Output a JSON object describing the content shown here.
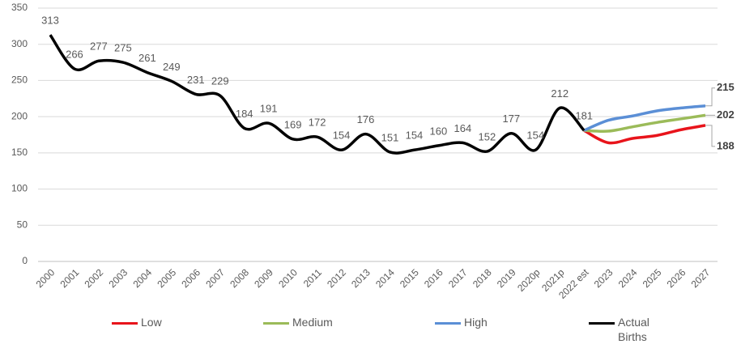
{
  "chart_data": {
    "type": "line",
    "categories": [
      "2000",
      "2001",
      "2002",
      "2003",
      "2004",
      "2005",
      "2006",
      "2007",
      "2008",
      "2009",
      "2010",
      "2011",
      "2012",
      "2013",
      "2014",
      "2015",
      "2016",
      "2017",
      "2018",
      "2019",
      "2020p",
      "2021p",
      "2022 est",
      "2023",
      "2024",
      "2025",
      "2026",
      "2027"
    ],
    "series": [
      {
        "name": "Low",
        "color": "#e8141b",
        "values": [
          null,
          null,
          null,
          null,
          null,
          null,
          null,
          null,
          null,
          null,
          null,
          null,
          null,
          null,
          null,
          null,
          null,
          null,
          null,
          null,
          null,
          null,
          181,
          164,
          170,
          174,
          182,
          188
        ]
      },
      {
        "name": "Medium",
        "color": "#9bbb59",
        "values": [
          null,
          null,
          null,
          null,
          null,
          null,
          null,
          null,
          null,
          null,
          null,
          null,
          null,
          null,
          null,
          null,
          null,
          null,
          null,
          null,
          null,
          null,
          181,
          180,
          186,
          192,
          197,
          202
        ]
      },
      {
        "name": "High",
        "color": "#5b8fd6",
        "values": [
          null,
          null,
          null,
          null,
          null,
          null,
          null,
          null,
          null,
          null,
          null,
          null,
          null,
          null,
          null,
          null,
          null,
          null,
          null,
          null,
          null,
          null,
          181,
          195,
          201,
          208,
          212,
          215
        ]
      },
      {
        "name": "Actual Births",
        "color": "#000000",
        "values": [
          313,
          266,
          277,
          275,
          261,
          249,
          231,
          229,
          184,
          191,
          169,
          172,
          154,
          176,
          151,
          154,
          160,
          164,
          152,
          177,
          154,
          212,
          181,
          null,
          null,
          null,
          null,
          null
        ]
      }
    ],
    "ylim": [
      0,
      350
    ],
    "yticks": [
      0,
      50,
      100,
      150,
      200,
      250,
      300,
      350
    ],
    "grid": true
  }
}
